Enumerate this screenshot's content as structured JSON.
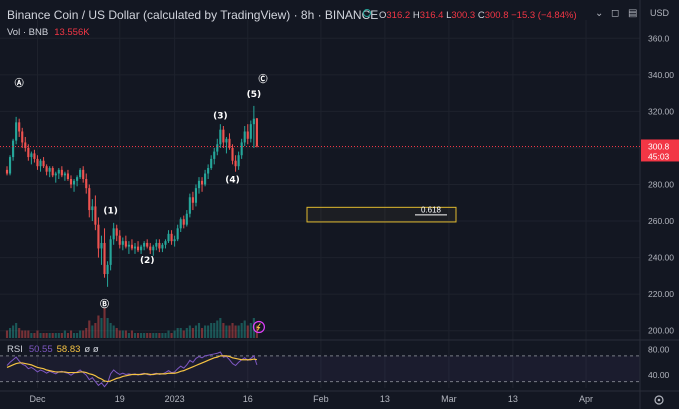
{
  "header": {
    "title": "Binance Coin / US Dollar (calculated by TradingView) · 8h · BINANCE",
    "ohlc": {
      "o_label": "O",
      "o": "316.2",
      "h_label": "H",
      "h": "316.4",
      "l_label": "L",
      "l": "300.3",
      "c_label": "C",
      "c": "300.8",
      "change": "−15.3 (−4.84%)"
    },
    "currency": "USD",
    "status_color": "#26a69a"
  },
  "volume": {
    "label": "Vol · BNB",
    "value": "13.556K"
  },
  "price_tag": {
    "price": "300.8",
    "countdown": "45:03",
    "color": "#f23645"
  },
  "fib_box": {
    "label": "0.618",
    "low": 259.5,
    "high": 267.5
  },
  "rsi": {
    "label": "RSI",
    "value1": "50.55",
    "value2": "58.83",
    "extra": "ø ø",
    "levels": [
      "80.00",
      "40.00"
    ],
    "upper": 70,
    "lower": 30
  },
  "controls": [
    "⌄",
    "◻",
    "▤"
  ],
  "chart_data": {
    "type": "candlestick",
    "ylim": [
      196,
      370
    ],
    "y_ticks": [
      360,
      340,
      320,
      300,
      280,
      260,
      240,
      220,
      200
    ],
    "y_tick_labels": [
      "360.0",
      "340.00",
      "320.00",
      "300.00",
      "280.00",
      "260.00",
      "240.00",
      "220.00",
      "200.00"
    ],
    "x_ticks": [
      {
        "index": 10,
        "label": "Dec"
      },
      {
        "index": 37,
        "label": "19"
      },
      {
        "index": 55,
        "label": "2023"
      },
      {
        "index": 79,
        "label": "16"
      },
      {
        "index": 103,
        "label": "Feb"
      },
      {
        "index": 124,
        "label": "13"
      },
      {
        "index": 145,
        "label": "Mar"
      },
      {
        "index": 166,
        "label": "13"
      },
      {
        "index": 190,
        "label": "Apr"
      }
    ],
    "bars_total": 210,
    "last_price": 300.8,
    "candles": [
      [
        288,
        290,
        285,
        286
      ],
      [
        286,
        296,
        285,
        295
      ],
      [
        295,
        305,
        293,
        304
      ],
      [
        304,
        317,
        302,
        314
      ],
      [
        314,
        316,
        306,
        309
      ],
      [
        309,
        311,
        300,
        303
      ],
      [
        303,
        306,
        298,
        300
      ],
      [
        300,
        302,
        293,
        295
      ],
      [
        295,
        298,
        291,
        297
      ],
      [
        297,
        299,
        292,
        294
      ],
      [
        294,
        296,
        288,
        290
      ],
      [
        290,
        294,
        287,
        293
      ],
      [
        293,
        295,
        289,
        290
      ],
      [
        290,
        291,
        285,
        287
      ],
      [
        287,
        290,
        284,
        289
      ],
      [
        289,
        290,
        284,
        285
      ],
      [
        285,
        287,
        281,
        286
      ],
      [
        286,
        289,
        283,
        288
      ],
      [
        288,
        290,
        284,
        285
      ],
      [
        285,
        287,
        282,
        286
      ],
      [
        286,
        288,
        282,
        283
      ],
      [
        283,
        285,
        278,
        280
      ],
      [
        280,
        283,
        276,
        282
      ],
      [
        282,
        285,
        279,
        284
      ],
      [
        284,
        289,
        283,
        288
      ],
      [
        288,
        290,
        281,
        283
      ],
      [
        283,
        286,
        275,
        278
      ],
      [
        278,
        280,
        262,
        266
      ],
      [
        266,
        272,
        260,
        268
      ],
      [
        268,
        274,
        255,
        258
      ],
      [
        258,
        262,
        240,
        245
      ],
      [
        245,
        252,
        236,
        248
      ],
      [
        248,
        256,
        229,
        231
      ],
      [
        231,
        238,
        224,
        236
      ],
      [
        236,
        252,
        233,
        250
      ],
      [
        250,
        259,
        247,
        256
      ],
      [
        256,
        258,
        249,
        252
      ],
      [
        252,
        255,
        245,
        247
      ],
      [
        247,
        251,
        244,
        249
      ],
      [
        249,
        252,
        245,
        246
      ],
      [
        246,
        249,
        242,
        247
      ],
      [
        247,
        250,
        244,
        245
      ],
      [
        245,
        248,
        242,
        246
      ],
      [
        246,
        249,
        243,
        244
      ],
      [
        244,
        247,
        242,
        246
      ],
      [
        246,
        249,
        244,
        248
      ],
      [
        248,
        250,
        245,
        246
      ],
      [
        246,
        248,
        242,
        244
      ],
      [
        244,
        247,
        241,
        246
      ],
      [
        246,
        250,
        244,
        248
      ],
      [
        248,
        250,
        243,
        245
      ],
      [
        245,
        248,
        243,
        247
      ],
      [
        247,
        250,
        245,
        249
      ],
      [
        249,
        255,
        248,
        253
      ],
      [
        253,
        255,
        247,
        249
      ],
      [
        249,
        252,
        246,
        250
      ],
      [
        250,
        258,
        249,
        256
      ],
      [
        256,
        262,
        254,
        261
      ],
      [
        261,
        263,
        256,
        258
      ],
      [
        258,
        266,
        257,
        264
      ],
      [
        264,
        275,
        262,
        273
      ],
      [
        273,
        276,
        266,
        270
      ],
      [
        270,
        280,
        268,
        278
      ],
      [
        278,
        284,
        275,
        282
      ],
      [
        282,
        284,
        276,
        280
      ],
      [
        280,
        288,
        279,
        286
      ],
      [
        286,
        291,
        283,
        289
      ],
      [
        289,
        296,
        288,
        294
      ],
      [
        294,
        300,
        291,
        298
      ],
      [
        298,
        305,
        296,
        302
      ],
      [
        302,
        313,
        300,
        310
      ],
      [
        310,
        312,
        300,
        303
      ],
      [
        303,
        306,
        297,
        305
      ],
      [
        305,
        308,
        299,
        300
      ],
      [
        300,
        302,
        291,
        293
      ],
      [
        293,
        296,
        287,
        290
      ],
      [
        290,
        298,
        288,
        296
      ],
      [
        296,
        305,
        294,
        303
      ],
      [
        303,
        312,
        301,
        309
      ],
      [
        309,
        313,
        302,
        305
      ],
      [
        305,
        315,
        303,
        313
      ],
      [
        313,
        323,
        300,
        316
      ],
      [
        316.2,
        316.4,
        300.3,
        300.8
      ]
    ],
    "volume": [
      3,
      4,
      5,
      6,
      4,
      3,
      3,
      3,
      2,
      2,
      3,
      2,
      2,
      2,
      2,
      2,
      2,
      2,
      2,
      3,
      2,
      3,
      2,
      2,
      3,
      3,
      4,
      7,
      5,
      6,
      9,
      8,
      12,
      8,
      6,
      5,
      4,
      3,
      3,
      3,
      2,
      3,
      2,
      2,
      2,
      2,
      2,
      2,
      2,
      2,
      2,
      2,
      2,
      3,
      2,
      3,
      4,
      4,
      3,
      4,
      5,
      4,
      5,
      6,
      4,
      5,
      5,
      6,
      6,
      7,
      8,
      6,
      5,
      5,
      6,
      5,
      5,
      6,
      7,
      5,
      6,
      8,
      5
    ],
    "rsi": [
      55,
      60,
      64,
      68,
      62,
      57,
      55,
      50,
      52,
      49,
      45,
      48,
      46,
      43,
      46,
      44,
      42,
      45,
      46,
      44,
      43,
      40,
      43,
      45,
      48,
      44,
      40,
      33,
      36,
      30,
      24,
      28,
      22,
      28,
      42,
      48,
      44,
      41,
      43,
      41,
      42,
      41,
      42,
      40,
      42,
      43,
      41,
      40,
      42,
      43,
      41,
      42,
      44,
      47,
      44,
      45,
      50,
      54,
      51,
      56,
      63,
      60,
      66,
      69,
      67,
      70,
      71,
      72,
      73,
      74,
      76,
      68,
      69,
      64,
      58,
      55,
      60,
      64,
      67,
      63,
      66,
      70,
      56
    ],
    "rsi_ma": [
      52,
      54,
      56,
      58,
      59,
      59,
      58,
      57,
      56,
      54,
      52,
      51,
      50,
      48,
      47,
      46,
      45,
      45,
      45,
      45,
      44,
      44,
      44,
      44,
      45,
      45,
      44,
      42,
      41,
      39,
      36,
      34,
      31,
      30,
      31,
      33,
      35,
      36,
      38,
      39,
      40,
      41,
      41,
      41,
      41,
      42,
      42,
      41,
      41,
      42,
      42,
      42,
      42,
      43,
      43,
      43,
      44,
      46,
      47,
      49,
      51,
      53,
      55,
      57,
      59,
      61,
      63,
      65,
      67,
      68,
      70,
      70,
      70,
      69,
      67,
      66,
      65,
      64,
      64,
      64,
      64,
      65,
      64
    ],
    "wave_labels": [
      {
        "label": "Ⓐ",
        "index": 4,
        "price": 334
      },
      {
        "label": "Ⓑ",
        "index": 32,
        "price": 213
      },
      {
        "label": "(1)",
        "index": 34,
        "price": 264
      },
      {
        "label": "(2)",
        "index": 46,
        "price": 237
      },
      {
        "label": "(3)",
        "index": 70,
        "price": 316
      },
      {
        "label": "(4)",
        "index": 74,
        "price": 281
      },
      {
        "label": "(5)",
        "index": 81,
        "price": 328
      },
      {
        "label": "Ⓒ",
        "index": 84,
        "price": 336
      }
    ]
  }
}
